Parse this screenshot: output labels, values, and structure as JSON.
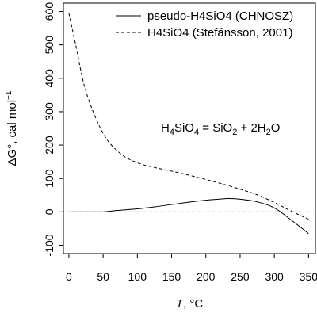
{
  "chart_data": {
    "type": "line",
    "xlabel": {
      "var": "T",
      "rest": ", °C"
    },
    "ylabel": {
      "prefix": "ΔG°, cal mol",
      "sup": "−1"
    },
    "xlim": [
      -8,
      360
    ],
    "ylim": [
      -125,
      625
    ],
    "xticks": [
      "0",
      "50",
      "100",
      "150",
      "200",
      "250",
      "300",
      "350"
    ],
    "yticks": [
      "-100",
      "0",
      "100",
      "200",
      "300",
      "400",
      "500",
      "600"
    ],
    "hline": 0,
    "legend_position": "top-right",
    "annotation": {
      "a1": "H",
      "a2": "4",
      "a3": "SiO",
      "a4": "4",
      "a5": " = SiO",
      "a6": "2",
      "a7": " + 2H",
      "a8": "2",
      "a9": "O"
    },
    "series": [
      {
        "name": "pseudo-H4SiO4 (CHNOSZ)",
        "style": "solid",
        "x": [
          0,
          25,
          50,
          60,
          75,
          100,
          125,
          150,
          175,
          200,
          225,
          235,
          250,
          275,
          300,
          325,
          350
        ],
        "y": [
          0,
          0,
          0,
          2,
          5,
          9,
          15,
          22,
          29,
          35,
          39,
          40,
          38,
          30,
          12,
          -25,
          -65
        ]
      },
      {
        "name": "H4SiO4 (Stefánsson, 2001)",
        "style": "dashed",
        "x": [
          0,
          10,
          25,
          50,
          75,
          100,
          125,
          150,
          175,
          200,
          225,
          250,
          275,
          300,
          325,
          350
        ],
        "y": [
          595,
          500,
          360,
          235,
          175,
          147,
          133,
          122,
          110,
          97,
          83,
          68,
          51,
          28,
          2,
          -22
        ]
      }
    ]
  }
}
